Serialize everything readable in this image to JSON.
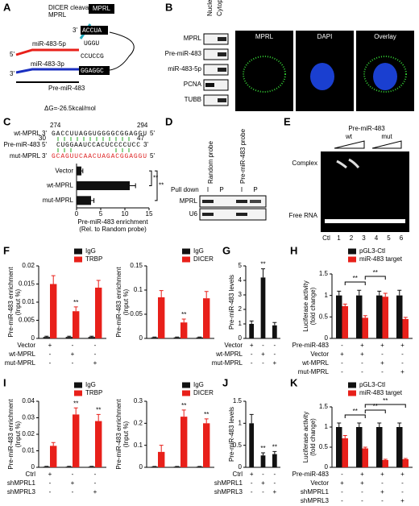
{
  "panels": {
    "A": {
      "label": "A",
      "cleavage": "DICER cleavage site",
      "mprl": "MPRL",
      "mir5p": "miR-483-5p",
      "mir3p": "miR-483-3p",
      "pre": "Pre-miR-483",
      "dg": "ΔG=-26.5kcal/mol",
      "p5": "5'",
      "p3": "3'",
      "stem_top": "ACCUA",
      "stem_mid": "CCUCCG",
      "stem_bot": "GGAGGC",
      "loop": "UGGU"
    },
    "B": {
      "label": "B",
      "fractions": [
        "Nucleus",
        "Cytoplasm"
      ],
      "rows": [
        "MPRL",
        "Pre-miR-483",
        "miR-483-5p",
        "PCNA",
        "TUBB"
      ],
      "images": [
        "MPRL",
        "DAPI",
        "Overlay"
      ]
    },
    "C": {
      "label": "C",
      "pos_start": "274",
      "pos_end": "294",
      "wt": "wt-MPRL 3'",
      "wt_seq": "GACCUUAGGUGGGGCGGAGGU",
      "pre": "Pre-miR-483 5'",
      "pre_seq": "CUGGAAUCCACUCCCCUCC",
      "pre_start": "30",
      "pre_stop": "47",
      "mut": "mut-MPRL 3'",
      "mut_seq": "GCAGUUCAACUAGACGGAGGU",
      "p5": "5'",
      "p3": "3'"
    },
    "D": {
      "label": "D",
      "pulldown": "Pull down",
      "probes": [
        "Random probe",
        "Pre-miR-483 probe"
      ],
      "lanes": [
        "I",
        "P",
        "I",
        "P"
      ],
      "rows": [
        "MPRL",
        "U6"
      ]
    },
    "E": {
      "label": "E",
      "title": "Pre-miR-483",
      "groups": [
        "wt",
        "mut"
      ],
      "complex": "Complex",
      "free": "Free RNA",
      "lanes": [
        "Ctl",
        "1",
        "2",
        "3",
        "4",
        "5",
        "6"
      ]
    }
  },
  "chart_data": [
    {
      "type": "hbar",
      "categories": [
        "Vector",
        "wt-MPRL",
        "mut-MPRL"
      ],
      "values": [
        1,
        11,
        3
      ],
      "errors": [
        0.3,
        1.2,
        0.6
      ],
      "color": "#111111",
      "xlim": [
        0,
        15
      ],
      "xticks": [
        0,
        5,
        10,
        15
      ],
      "xlabel": [
        "Pre-miR-483 enrichment",
        "(Rel. to Random probe)"
      ],
      "annotations": [
        "**",
        "**"
      ]
    },
    {
      "type": "bar",
      "label": "F",
      "ylabel": [
        "Pre-miR-483 enrichment",
        "(Input %)"
      ],
      "ylim": [
        0,
        0.02
      ],
      "yticks": [
        0,
        0.005,
        0.01,
        0.015,
        0.02
      ],
      "series": [
        {
          "name": "IgG",
          "color": "#111111",
          "values": [
            0.0004,
            0.0004,
            0.0004
          ],
          "errors": [
            0.0002,
            0.0002,
            0.0002
          ],
          "marks": [
            null,
            null,
            null
          ]
        },
        {
          "name": "TRBP",
          "color": "#e8201a",
          "values": [
            0.015,
            0.0075,
            0.014
          ],
          "errors": [
            0.0023,
            0.0012,
            0.002
          ],
          "marks": [
            null,
            "**",
            null
          ]
        }
      ],
      "conditions": [
        {
          "name": "Vector",
          "values": [
            "+",
            "-",
            "-"
          ]
        },
        {
          "name": "wt-MPRL",
          "values": [
            "-",
            "+",
            "-"
          ]
        },
        {
          "name": "mut-MPRL",
          "values": [
            "-",
            "-",
            "+"
          ]
        }
      ]
    },
    {
      "type": "bar",
      "ylabel": [
        "Pre-miR-483 enrichment",
        "(Input %)"
      ],
      "ylim": [
        0,
        0.15
      ],
      "yticks": [
        0,
        0.05,
        0.1,
        0.15
      ],
      "series": [
        {
          "name": "IgG",
          "color": "#111111",
          "values": [
            0.002,
            0.002,
            0.002
          ],
          "errors": [
            0.001,
            0.001,
            0.001
          ],
          "marks": [
            null,
            null,
            null
          ]
        },
        {
          "name": "DICER",
          "color": "#e8201a",
          "values": [
            0.085,
            0.033,
            0.083
          ],
          "errors": [
            0.014,
            0.007,
            0.014
          ],
          "marks": [
            null,
            "**",
            null
          ]
        }
      ]
    },
    {
      "type": "bar",
      "label": "G",
      "ylabel": [
        "Pre-miR-483 levels"
      ],
      "ylim": [
        0,
        5
      ],
      "yticks": [
        0,
        1,
        2,
        3,
        4,
        5
      ],
      "series": [
        {
          "color": "#111111",
          "values": [
            1,
            4.2,
            0.9
          ],
          "errors": [
            0.2,
            0.6,
            0.2
          ],
          "marks": [
            null,
            "**",
            null
          ]
        }
      ],
      "conditions": [
        {
          "name": "Vector",
          "values": [
            "+",
            "-",
            "-"
          ]
        },
        {
          "name": "wt-MPRL",
          "values": [
            "-",
            "+",
            "-"
          ]
        },
        {
          "name": "mut-MPRL",
          "values": [
            "-",
            "-",
            "+"
          ]
        }
      ]
    },
    {
      "type": "bar",
      "label": "H",
      "ylabel": [
        "Luciferase activity",
        "(fold change)"
      ],
      "ylim": [
        0,
        1.5
      ],
      "yticks": [
        0,
        0.5,
        1,
        1.5
      ],
      "series": [
        {
          "name": "pGL3-Ctl",
          "color": "#111111",
          "values": [
            1,
            1,
            1,
            1
          ],
          "errors": [
            0.1,
            0.12,
            0.1,
            0.12
          ],
          "marks": [
            null,
            null,
            null,
            null
          ]
        },
        {
          "name": "miR-483 target",
          "color": "#e8201a",
          "values": [
            0.75,
            0.48,
            0.97,
            0.45
          ],
          "errors": [
            0.05,
            0.05,
            0.08,
            0.04
          ],
          "marks": [
            null,
            null,
            null,
            null
          ]
        }
      ],
      "conditions": [
        {
          "name": "Pre-miR-483",
          "values": [
            "-",
            "+",
            "+",
            "+"
          ]
        },
        {
          "name": "Vector",
          "values": [
            "+",
            "+",
            "-",
            "-"
          ]
        },
        {
          "name": "wt-MPRL",
          "values": [
            "-",
            "-",
            "+",
            "-"
          ]
        },
        {
          "name": "mut-MPRL",
          "values": [
            "-",
            "-",
            "-",
            "+"
          ]
        }
      ],
      "annotations": [
        "**",
        "**"
      ]
    },
    {
      "type": "bar",
      "label": "I",
      "ylabel": [
        "Pre-miR-483 enrichment",
        "(Input %)"
      ],
      "ylim": [
        0,
        0.04
      ],
      "yticks": [
        0,
        0.01,
        0.02,
        0.03,
        0.04
      ],
      "series": [
        {
          "name": "IgG",
          "color": "#111111",
          "values": [
            0.0004,
            0.0004,
            0.0004
          ],
          "errors": [
            0.0002,
            0.0002,
            0.0002
          ],
          "marks": [
            null,
            null,
            null
          ]
        },
        {
          "name": "TRBP",
          "color": "#e8201a",
          "values": [
            0.013,
            0.032,
            0.028
          ],
          "errors": [
            0.002,
            0.004,
            0.004
          ],
          "marks": [
            null,
            "**",
            "**"
          ]
        }
      ],
      "conditions": [
        {
          "name": "Ctrl",
          "values": [
            "+",
            "-",
            "-"
          ]
        },
        {
          "name": "shMPRL1",
          "values": [
            "-",
            "+",
            "-"
          ]
        },
        {
          "name": "shMPRL3",
          "values": [
            "-",
            "-",
            "+"
          ]
        }
      ]
    },
    {
      "type": "bar",
      "ylabel": [
        "Pre-miR-483 enrichment",
        "(Input %)"
      ],
      "ylim": [
        0,
        0.3
      ],
      "yticks": [
        0,
        0.1,
        0.2,
        0.3
      ],
      "series": [
        {
          "name": "IgG",
          "color": "#111111",
          "values": [
            0.003,
            0.003,
            0.003
          ],
          "errors": [
            0.001,
            0.001,
            0.001
          ],
          "marks": [
            null,
            null,
            null
          ]
        },
        {
          "name": "DICER",
          "color": "#e8201a",
          "values": [
            0.07,
            0.23,
            0.2
          ],
          "errors": [
            0.03,
            0.03,
            0.02
          ],
          "marks": [
            null,
            "**",
            "**"
          ]
        }
      ]
    },
    {
      "type": "bar",
      "label": "J",
      "ylabel": [
        "Pre-miR-483 levels"
      ],
      "ylim": [
        0,
        1.5
      ],
      "yticks": [
        0,
        0.5,
        1,
        1.5
      ],
      "series": [
        {
          "color": "#111111",
          "values": [
            1,
            0.27,
            0.3
          ],
          "errors": [
            0.2,
            0.06,
            0.06
          ],
          "marks": [
            null,
            "**",
            "**"
          ]
        }
      ],
      "conditions": [
        {
          "name": "Ctrl",
          "values": [
            "+",
            "-",
            "-"
          ]
        },
        {
          "name": "shMPRL1",
          "values": [
            "-",
            "+",
            "-"
          ]
        },
        {
          "name": "shMPRL3",
          "values": [
            "-",
            "-",
            "+"
          ]
        }
      ]
    },
    {
      "type": "bar",
      "label": "K",
      "ylabel": [
        "Luciferase activity",
        "(fold change)"
      ],
      "ylim": [
        0,
        1.5
      ],
      "yticks": [
        0,
        0.5,
        1,
        1.5
      ],
      "series": [
        {
          "name": "pGL3-Ctl",
          "color": "#111111",
          "values": [
            1,
            1,
            1,
            1
          ],
          "errors": [
            0.1,
            0.1,
            0.1,
            0.1
          ],
          "marks": [
            null,
            null,
            null,
            null
          ]
        },
        {
          "name": "miR-483 target",
          "color": "#e8201a",
          "values": [
            0.72,
            0.47,
            0.18,
            0.2
          ],
          "errors": [
            0.07,
            0.03,
            0.02,
            0.02
          ],
          "marks": [
            null,
            null,
            null,
            null
          ]
        }
      ],
      "conditions": [
        {
          "name": "Pre-miR-483",
          "values": [
            "-",
            "+",
            "+",
            "+"
          ]
        },
        {
          "name": "Vector",
          "values": [
            "+",
            "+",
            "-",
            "-"
          ]
        },
        {
          "name": "shMPRL1",
          "values": [
            "-",
            "-",
            "+",
            "-"
          ]
        },
        {
          "name": "shMPRL3",
          "values": [
            "-",
            "-",
            "-",
            "+"
          ]
        }
      ],
      "annotations": [
        "**",
        "**",
        "**"
      ]
    }
  ]
}
